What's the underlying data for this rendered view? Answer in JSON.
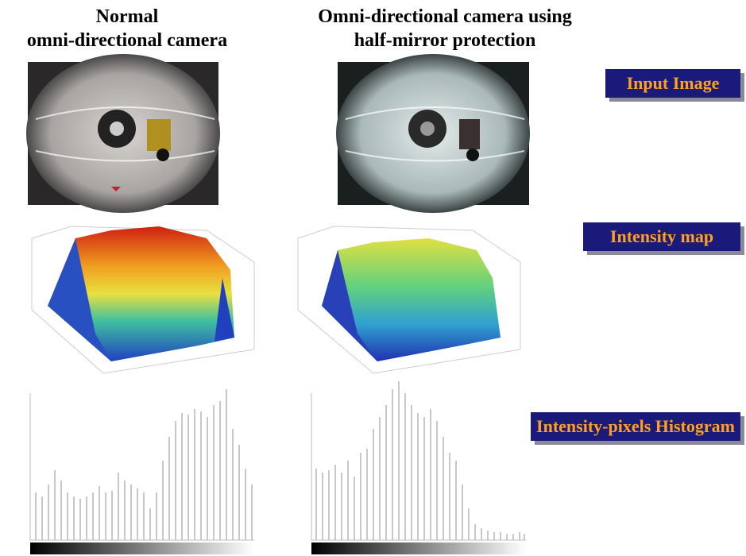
{
  "headings": [
    {
      "lines": [
        "Normal",
        "omni-directional camera"
      ]
    },
    {
      "lines": [
        "Omni-directional camera using",
        "half-mirror protection"
      ]
    }
  ],
  "labels": [
    "Input Image",
    "Intensity map",
    "Intensity-pixels Histogram"
  ]
}
